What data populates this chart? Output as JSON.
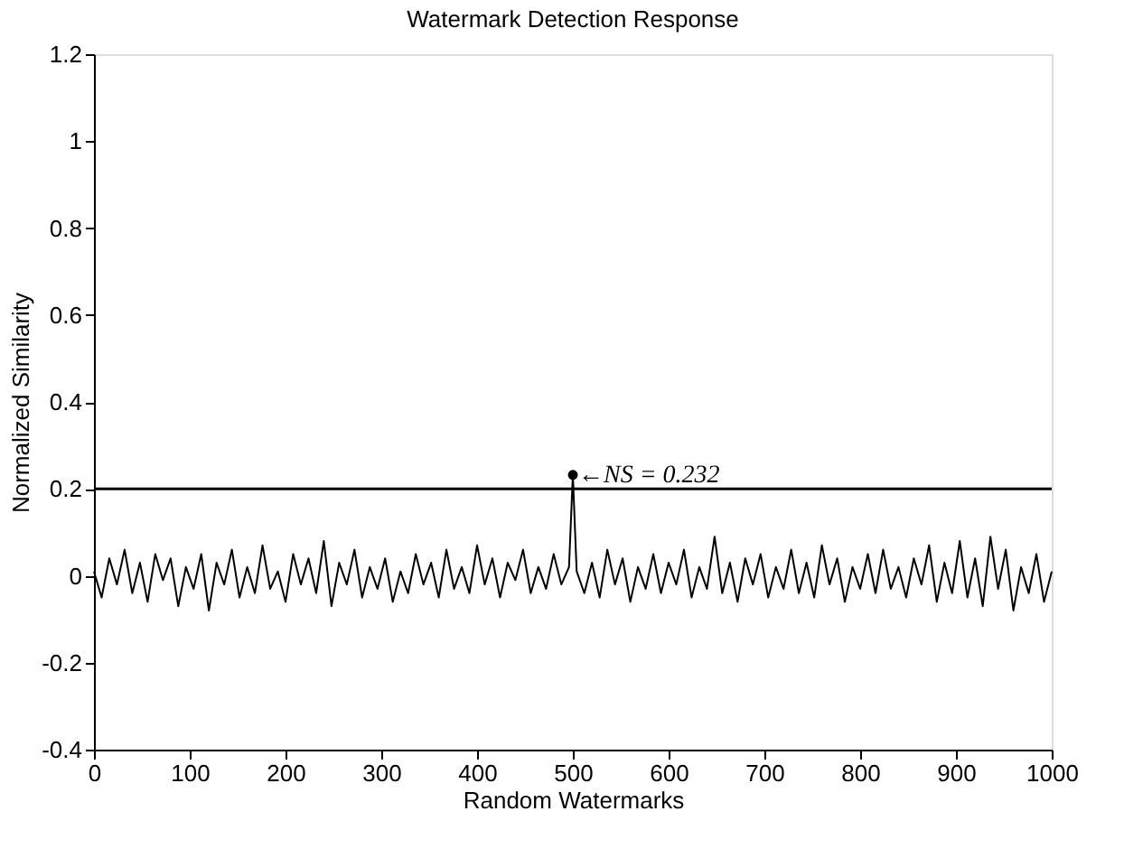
{
  "chart_data": {
    "type": "line",
    "title": "Watermark Detection Response",
    "xlabel": "Random Watermarks",
    "ylabel": "Normalized Similarity",
    "xlim": [
      0,
      1000
    ],
    "xticks": [
      0,
      100,
      200,
      300,
      400,
      500,
      600,
      700,
      800,
      900,
      1000
    ],
    "ylim": [
      -0.4,
      1.2
    ],
    "yticks": [
      -0.4,
      -0.2,
      0,
      0.2,
      0.4,
      0.6,
      0.8,
      1,
      1.2
    ],
    "grid": false,
    "line_style": "solid",
    "marker": "none",
    "ref_lines": [
      {
        "axis": "y",
        "value": 0.2,
        "color": "#000000"
      }
    ],
    "annotations": [
      {
        "text": "←NS = 0.232",
        "x": 500,
        "y": 0.232
      }
    ],
    "series": [
      {
        "color": "#000000",
        "x": [
          0,
          8,
          16,
          24,
          32,
          40,
          48,
          56,
          64,
          72,
          80,
          88,
          96,
          104,
          112,
          120,
          128,
          136,
          144,
          152,
          160,
          168,
          176,
          184,
          192,
          200,
          208,
          216,
          224,
          232,
          240,
          248,
          256,
          264,
          272,
          280,
          288,
          296,
          304,
          312,
          320,
          328,
          336,
          344,
          352,
          360,
          368,
          376,
          384,
          392,
          400,
          408,
          416,
          424,
          432,
          440,
          448,
          456,
          464,
          472,
          480,
          488,
          496,
          500,
          504,
          512,
          520,
          528,
          536,
          544,
          552,
          560,
          568,
          576,
          584,
          592,
          600,
          608,
          616,
          624,
          632,
          640,
          648,
          656,
          664,
          672,
          680,
          688,
          696,
          704,
          712,
          720,
          728,
          736,
          744,
          752,
          760,
          768,
          776,
          784,
          792,
          800,
          808,
          816,
          824,
          832,
          840,
          848,
          856,
          864,
          872,
          880,
          888,
          896,
          904,
          912,
          920,
          928,
          936,
          944,
          952,
          960,
          968,
          976,
          984,
          992,
          1000
        ],
        "values": [
          0.01,
          -0.05,
          0.04,
          -0.02,
          0.06,
          -0.04,
          0.03,
          -0.06,
          0.05,
          -0.01,
          0.04,
          -0.07,
          0.02,
          -0.03,
          0.05,
          -0.08,
          0.03,
          -0.02,
          0.06,
          -0.05,
          0.02,
          -0.04,
          0.07,
          -0.03,
          0.01,
          -0.06,
          0.05,
          -0.02,
          0.04,
          -0.04,
          0.08,
          -0.07,
          0.03,
          -0.02,
          0.06,
          -0.05,
          0.02,
          -0.03,
          0.04,
          -0.06,
          0.01,
          -0.04,
          0.05,
          -0.02,
          0.03,
          -0.05,
          0.06,
          -0.03,
          0.02,
          -0.04,
          0.07,
          -0.02,
          0.04,
          -0.05,
          0.03,
          -0.01,
          0.06,
          -0.04,
          0.02,
          -0.03,
          0.05,
          -0.02,
          0.02,
          0.232,
          0.01,
          -0.04,
          0.03,
          -0.05,
          0.06,
          -0.02,
          0.04,
          -0.06,
          0.02,
          -0.03,
          0.05,
          -0.04,
          0.03,
          -0.02,
          0.06,
          -0.05,
          0.02,
          -0.03,
          0.09,
          -0.04,
          0.03,
          -0.06,
          0.04,
          -0.02,
          0.05,
          -0.05,
          0.02,
          -0.03,
          0.06,
          -0.04,
          0.03,
          -0.05,
          0.07,
          -0.02,
          0.04,
          -0.06,
          0.02,
          -0.03,
          0.05,
          -0.04,
          0.06,
          -0.03,
          0.02,
          -0.05,
          0.04,
          -0.02,
          0.07,
          -0.06,
          0.03,
          -0.04,
          0.08,
          -0.05,
          0.04,
          -0.07,
          0.09,
          -0.03,
          0.06,
          -0.08,
          0.02,
          -0.04,
          0.05,
          -0.06,
          0.01
        ]
      },
      {
        "type": "scatter",
        "color": "#000000",
        "marker": "circle",
        "x": [
          500
        ],
        "values": [
          0.232
        ]
      }
    ]
  }
}
